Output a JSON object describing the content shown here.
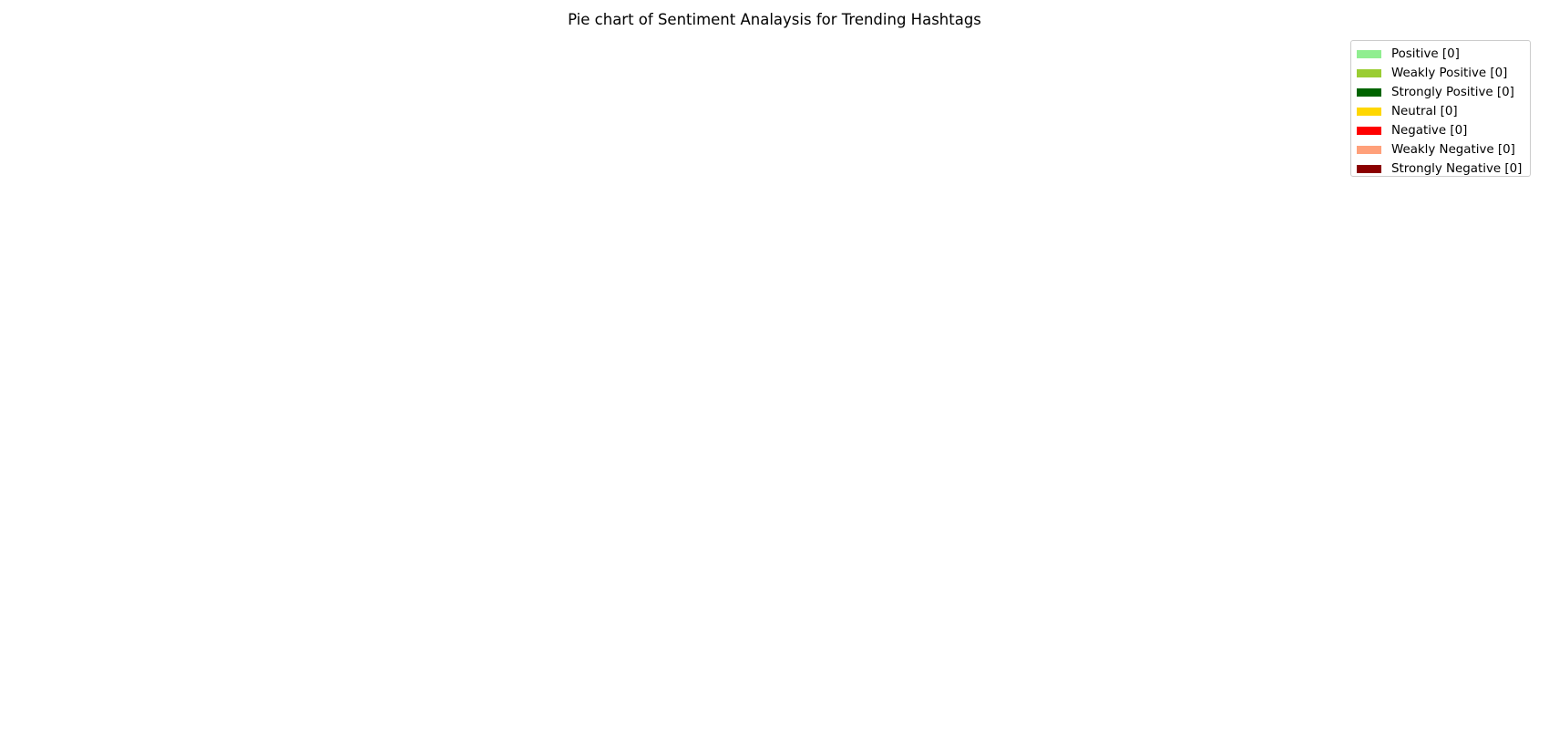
{
  "chart_data": {
    "type": "pie",
    "title": "Pie chart of Sentiment Analaysis for Trending Hashtags",
    "legend_position": "top-right",
    "slices": [
      {
        "label": "Positive [0]",
        "value": 0,
        "color": "#90ee90"
      },
      {
        "label": "Weakly Positive [0]",
        "value": 0,
        "color": "#9acd32"
      },
      {
        "label": "Strongly Positive [0]",
        "value": 0,
        "color": "#006400"
      },
      {
        "label": "Neutral [0]",
        "value": 0,
        "color": "#ffd700"
      },
      {
        "label": "Negative [0]",
        "value": 0,
        "color": "#ff0000"
      },
      {
        "label": "Weakly Negative [0]",
        "value": 0,
        "color": "#ffa07a"
      },
      {
        "label": "Strongly Negative [0]",
        "value": 0,
        "color": "#8b0000"
      }
    ]
  }
}
